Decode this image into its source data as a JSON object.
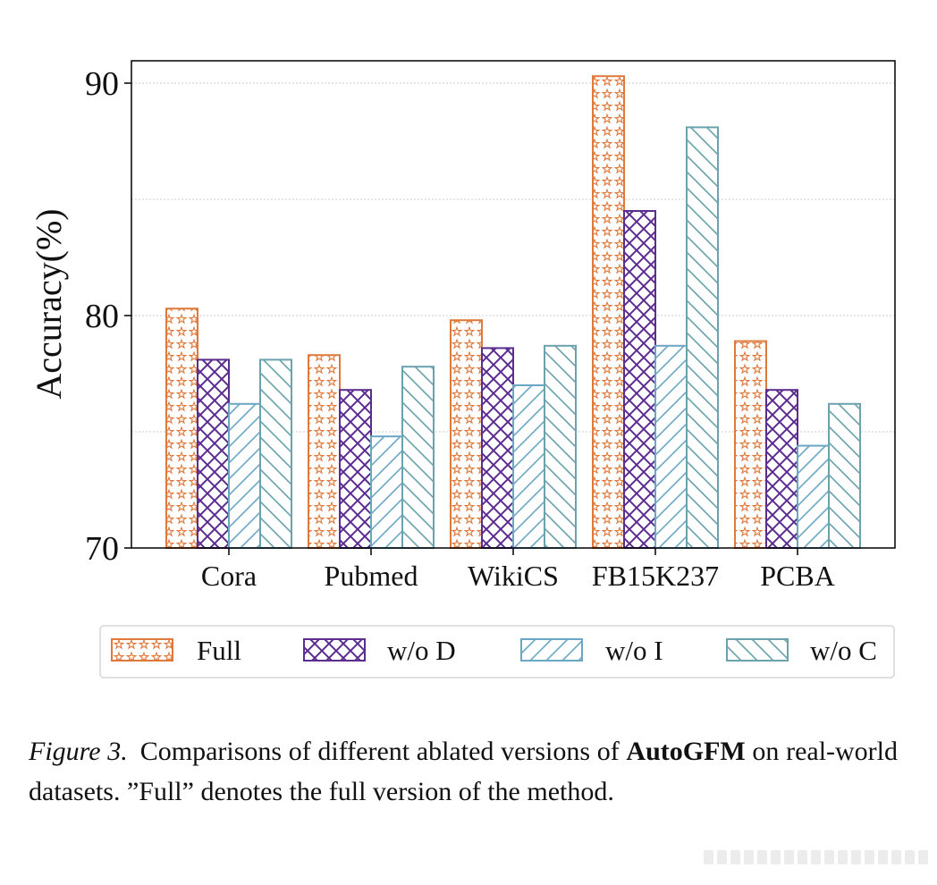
{
  "chart_data": {
    "type": "bar",
    "ylabel": "Accuracy(%)",
    "ylim": [
      70,
      91
    ],
    "yticks": [
      70,
      80,
      90
    ],
    "grid": true,
    "categories": [
      "Cora",
      "Pubmed",
      "WikiCS",
      "FB15K237",
      "PCBA"
    ],
    "series": [
      {
        "name": "Full",
        "values": [
          80.3,
          78.3,
          79.8,
          90.3,
          78.9
        ],
        "color": "#e07a3c",
        "pattern": "stars"
      },
      {
        "name": "w/o D",
        "values": [
          78.1,
          76.8,
          78.6,
          84.5,
          76.8
        ],
        "color": "#5b2d8e",
        "pattern": "crosshatch"
      },
      {
        "name": "w/o I",
        "values": [
          76.2,
          74.8,
          77.0,
          78.7,
          74.4
        ],
        "color": "#6aa7c4",
        "pattern": "diagonal-forward"
      },
      {
        "name": "w/o C",
        "values": [
          78.1,
          77.8,
          78.7,
          88.1,
          76.2
        ],
        "color": "#6aa2ad",
        "pattern": "diagonal-back"
      }
    ],
    "legend_position": "below"
  },
  "caption": {
    "figure_label": "Figure 3.",
    "text_before_bold": "Comparisons of different ablated versions of ",
    "bold": "AutoGFM",
    "text_after_bold": " on real-world datasets.  ”Full” denotes the full version of the method."
  }
}
